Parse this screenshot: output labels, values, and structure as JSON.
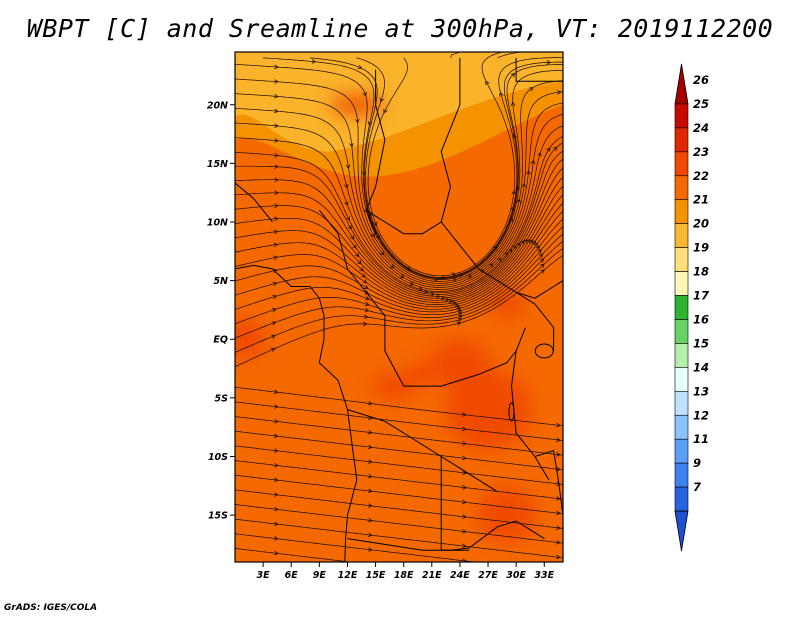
{
  "title": "WBPT [C] and Sreamline at 300hPa, VT: 2019112200",
  "credit": "GrADS: IGES/COLA",
  "lat_labels": [
    "20N",
    "15N",
    "10N",
    "5N",
    "EQ",
    "5S",
    "10S",
    "15S"
  ],
  "lat_values": [
    20,
    15,
    10,
    5,
    0,
    -5,
    -10,
    -15
  ],
  "lon_labels": [
    "3E",
    "6E",
    "9E",
    "12E",
    "15E",
    "18E",
    "21E",
    "24E",
    "27E",
    "30E",
    "33E"
  ],
  "lon_values": [
    3,
    6,
    9,
    12,
    15,
    18,
    21,
    24,
    27,
    30,
    33
  ],
  "colorbar": {
    "labels": [
      "26",
      "25",
      "24",
      "23",
      "22",
      "21",
      "20",
      "19",
      "18",
      "17",
      "16",
      "15",
      "14",
      "13",
      "12",
      "11",
      "9",
      "7"
    ],
    "colors": [
      "#a50000",
      "#c80a00",
      "#e02800",
      "#f04800",
      "#f56a00",
      "#f59200",
      "#fab832",
      "#fde07a",
      "#fff5b4",
      "#2fb42f",
      "#64d264",
      "#b4f0aa",
      "#e6ffff",
      "#bde1ff",
      "#8cc3ff",
      "#5aa0f5",
      "#3c82f0",
      "#2664e0",
      "#1e50d2"
    ]
  },
  "map": {
    "lon_range": [
      0,
      35
    ],
    "lat_range": [
      -19,
      24.5
    ],
    "field_colors": {
      "north": "#fab832",
      "band": "#f59200",
      "main": "#f56a00",
      "warm": "#f04800"
    },
    "vortex": {
      "lon": 22,
      "lat": 12
    }
  }
}
